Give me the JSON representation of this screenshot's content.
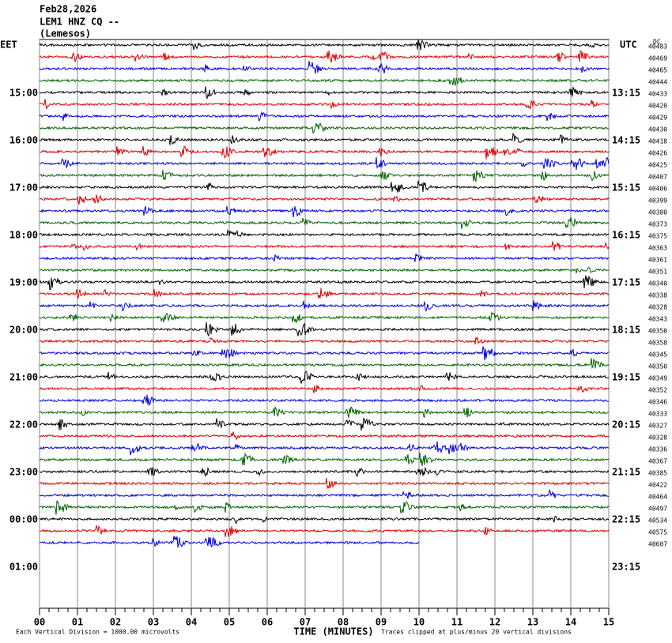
{
  "header": {
    "date": "Feb28,2026",
    "station": "LEM1 HNZ CQ --",
    "location": "(Lemesos)"
  },
  "chart_data": {
    "type": "helicorder",
    "left_zone": "EET",
    "right_zone": "UTC",
    "dc_label": "DC",
    "left_times": [
      "15:00",
      "16:00",
      "17:00",
      "18:00",
      "19:00",
      "20:00",
      "21:00",
      "22:00",
      "23:00",
      "00:00",
      "01:00"
    ],
    "right_times": [
      "13:15",
      "14:15",
      "15:15",
      "16:15",
      "17:15",
      "18:15",
      "19:15",
      "20:15",
      "21:15",
      "22:15",
      "23:15"
    ],
    "dc": [
      40483,
      40469,
      40465,
      40444,
      40433,
      40420,
      40429,
      40430,
      40418,
      40426,
      40425,
      40407,
      40406,
      40399,
      40380,
      40373,
      40375,
      40363,
      40361,
      40351,
      40340,
      40338,
      40328,
      40343,
      40350,
      40358,
      40345,
      40350,
      40349,
      40352,
      40346,
      40333,
      40327,
      40328,
      40336,
      40367,
      40385,
      40422,
      40464,
      40497,
      40534,
      40575,
      40607
    ],
    "last_trace_end": 10,
    "colors": [
      "#000000",
      "#e00000",
      "#0000e0",
      "#006400"
    ],
    "xlim": [
      0,
      15
    ],
    "xticks": [
      {
        "value": 0,
        "label": "00"
      },
      {
        "value": 1,
        "label": "01"
      },
      {
        "value": 2,
        "label": "02"
      },
      {
        "value": 3,
        "label": "03"
      },
      {
        "value": 4,
        "label": "04"
      },
      {
        "value": 5,
        "label": "05"
      },
      {
        "value": 6,
        "label": "06"
      },
      {
        "value": 7,
        "label": "07"
      },
      {
        "value": 8,
        "label": "08"
      },
      {
        "value": 9,
        "label": "09"
      },
      {
        "value": 10,
        "label": "10"
      },
      {
        "value": 11,
        "label": "11"
      },
      {
        "value": 12,
        "label": "12"
      },
      {
        "value": 13,
        "label": "13"
      },
      {
        "value": 14,
        "label": "14"
      },
      {
        "value": 15,
        "label": "15"
      }
    ],
    "x_label": "TIME (MINUTES)",
    "scale_note": "Each Vertical Division = 1000.00 microvolts",
    "clip_note": "Traces clipped at plus/minus 20 vertical divisions"
  }
}
